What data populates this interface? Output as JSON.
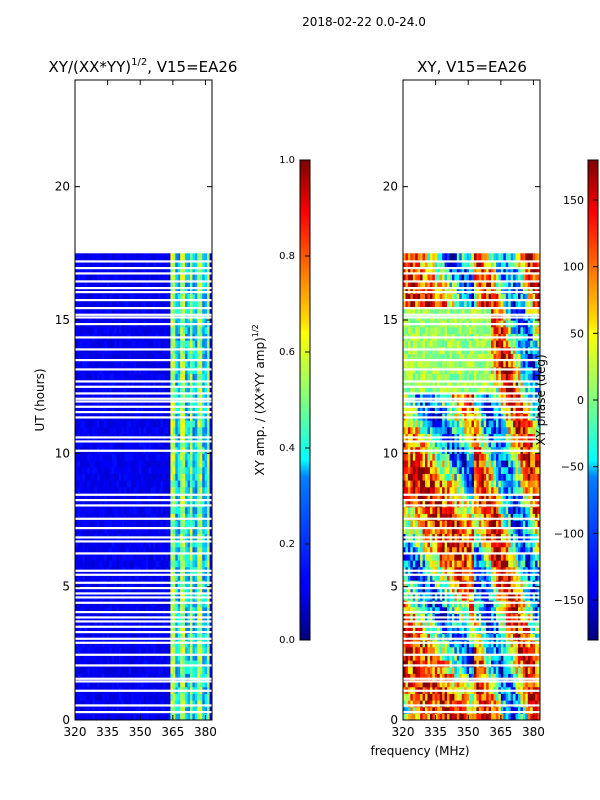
{
  "figure": {
    "suptitle": "2018-02-22 0.0-24.0",
    "xlabel": "frequency (MHz)"
  },
  "chart_data": [
    {
      "type": "heatmap",
      "title": "XY/(XX*YY)1/2, V15=EA26",
      "title_parts": {
        "main": "XY/(XX*YY)",
        "sup": "1/2",
        "rest": ", V15=EA26"
      },
      "xlabel": "",
      "ylabel": "UT (hours)",
      "xlim": [
        320,
        383
      ],
      "ylim": [
        0,
        24
      ],
      "xticks": [
        320,
        335,
        350,
        365,
        380
      ],
      "yticks": [
        0,
        5,
        10,
        15,
        20
      ],
      "data_extent_hours": [
        0,
        17.5
      ],
      "bright_band_mhz": [
        363,
        381
      ],
      "colorbar": {
        "label": "XY amp. / (XX*YY amp)1/2",
        "label_parts": {
          "main": "XY amp. / (XX*YY amp)",
          "sup": "1/2"
        },
        "range": [
          0.0,
          1.0
        ],
        "ticks": [
          "0.0",
          "0.2",
          "0.4",
          "0.6",
          "0.8",
          "1.0"
        ],
        "colormap": "jet"
      }
    },
    {
      "type": "heatmap",
      "title": "XY, V15=EA26",
      "xlabel": "frequency (MHz)",
      "ylabel": "",
      "xlim": [
        320,
        383
      ],
      "ylim": [
        0,
        24
      ],
      "xticks": [
        320,
        335,
        350,
        365,
        380
      ],
      "yticks": [
        0,
        5,
        10,
        15,
        20
      ],
      "data_extent_hours": [
        0,
        17.5
      ],
      "colorbar": {
        "label": "XY phase (deg)",
        "range": [
          -180,
          180
        ],
        "ticks": [
          "150",
          "100",
          "50",
          "0",
          "−50",
          "−100",
          "−150"
        ],
        "tick_values": [
          150,
          100,
          50,
          0,
          -50,
          -100,
          -150
        ],
        "colormap": "jet"
      }
    }
  ],
  "gap_hours": [
    0.3,
    0.55,
    1.1,
    1.45,
    1.55,
    2.05,
    2.45,
    2.9,
    3.05,
    3.3,
    3.5,
    3.7,
    3.85,
    4.05,
    4.4,
    4.6,
    4.75,
    4.95,
    5.15,
    5.45,
    5.6,
    6.25,
    6.7,
    6.85,
    7.2,
    7.55,
    8.05,
    8.25,
    8.45,
    10.1,
    10.45,
    10.6,
    11.35,
    11.55,
    11.75,
    11.95,
    12.05,
    12.25,
    12.5,
    12.7,
    13.15,
    13.5,
    13.9,
    14.35,
    14.85,
    15.1,
    15.2,
    15.45,
    15.75,
    16.05,
    16.2,
    16.45,
    16.75,
    16.95,
    17.2
  ]
}
